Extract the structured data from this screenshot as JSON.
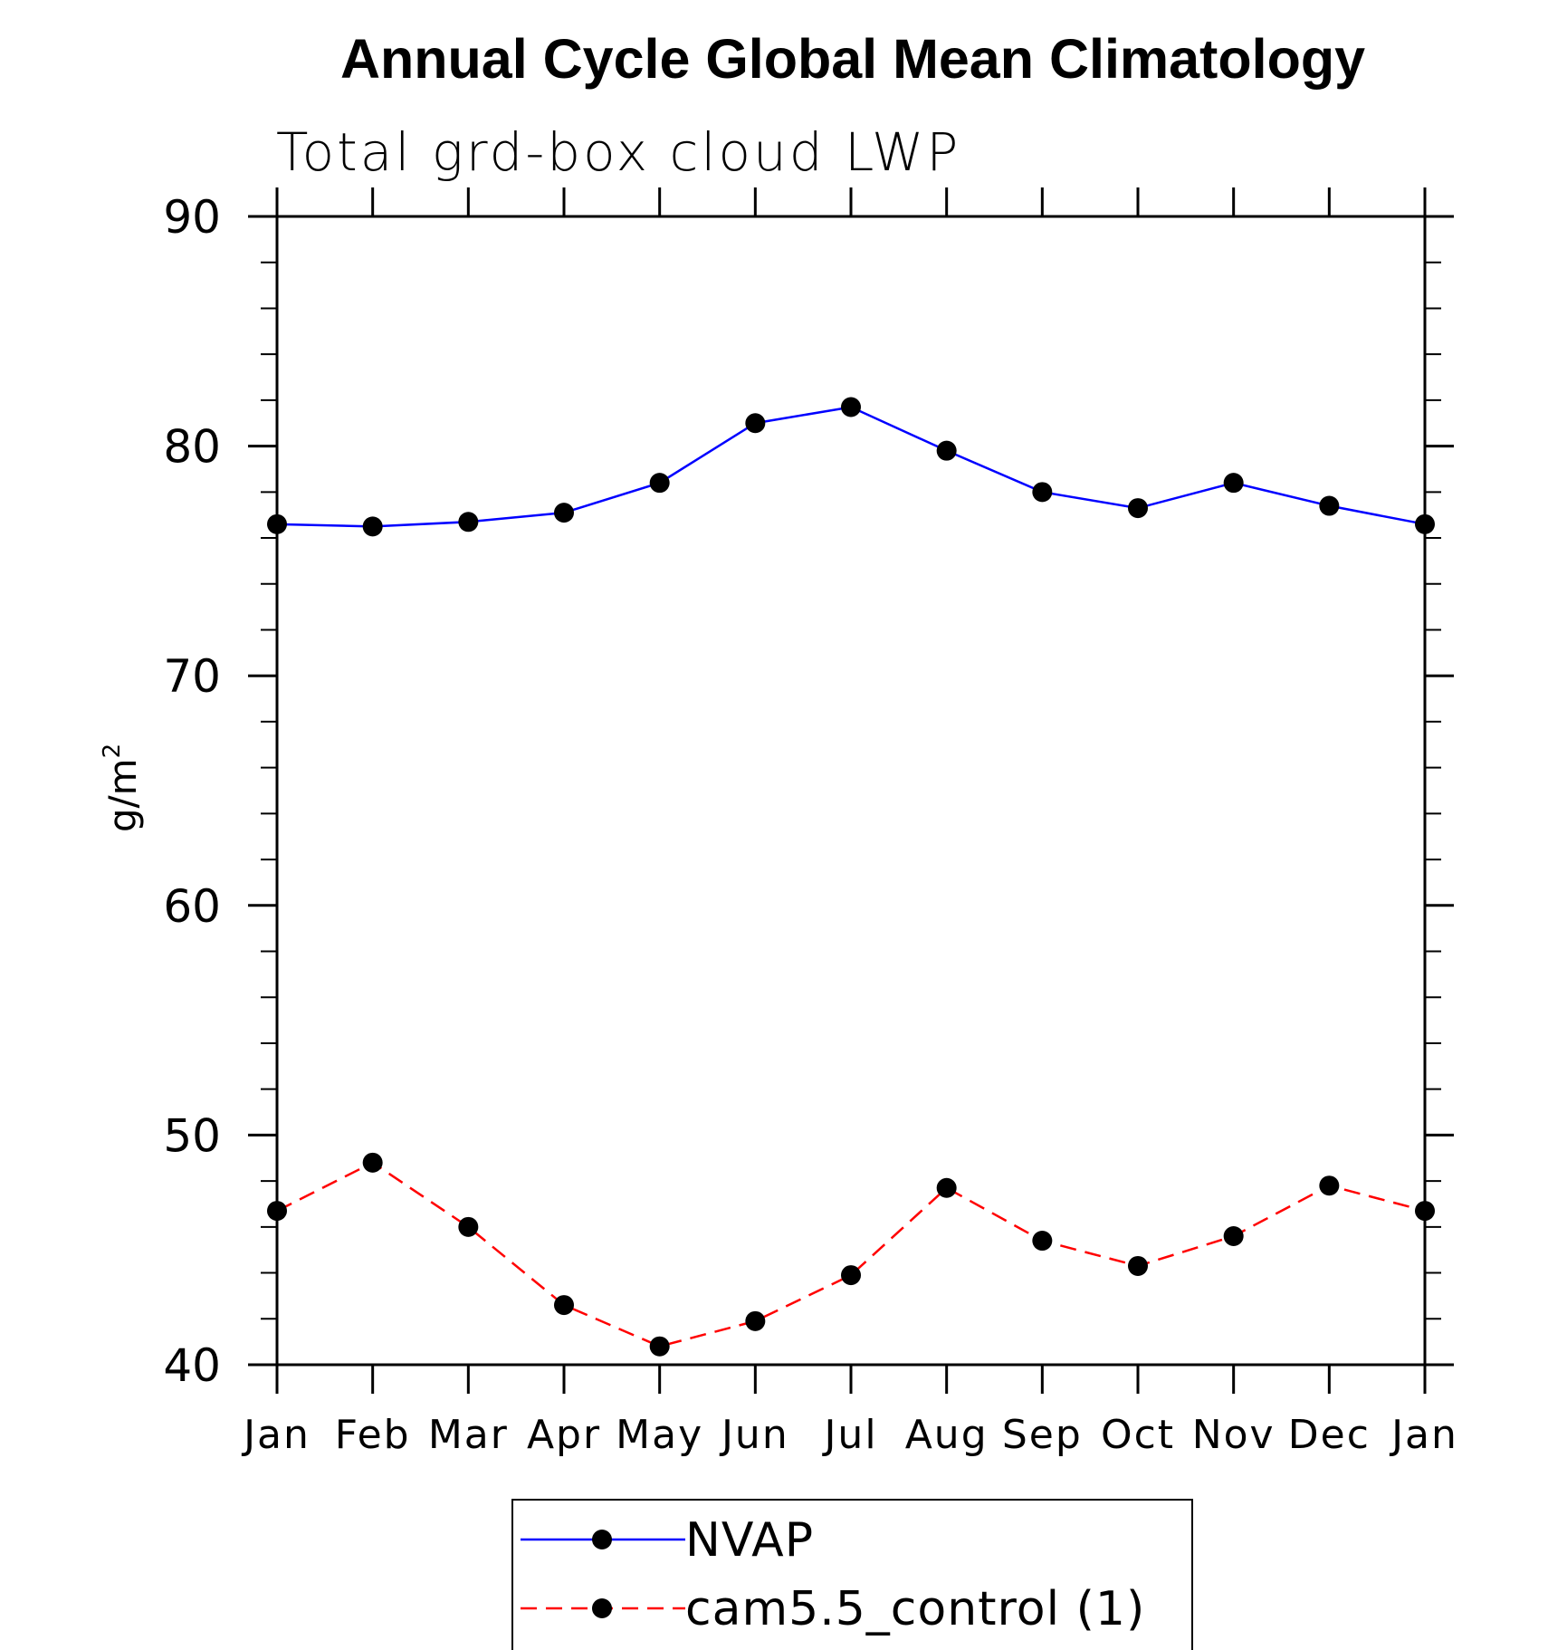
{
  "chart_data": {
    "type": "line",
    "title": "Annual Cycle Global Mean Climatology",
    "subtitle": "Total grd-box cloud LWP",
    "ylabel": "g/m",
    "ylabel_superscript": "2",
    "categories": [
      "Jan",
      "Feb",
      "Mar",
      "Apr",
      "May",
      "Jun",
      "Jul",
      "Aug",
      "Sep",
      "Oct",
      "Nov",
      "Dec",
      "Jan"
    ],
    "ylim": [
      40,
      90
    ],
    "yticks": [
      "40",
      "50",
      "60",
      "70",
      "80",
      "90"
    ],
    "grid": false,
    "legend_position": "bottom",
    "series": [
      {
        "name": "NVAP",
        "color": "#0000ff",
        "line_style": "solid",
        "marker": "filled-circle",
        "values": [
          76.6,
          76.5,
          76.7,
          77.1,
          78.4,
          81.0,
          81.7,
          79.8,
          78.0,
          77.3,
          78.4,
          77.4,
          76.6
        ]
      },
      {
        "name": "cam5.5_control (1)",
        "color": "#ff0000",
        "line_style": "dashed",
        "marker": "filled-circle",
        "values": [
          46.7,
          48.8,
          46.0,
          42.6,
          40.8,
          41.9,
          43.9,
          47.7,
          45.4,
          44.3,
          45.6,
          47.8,
          46.7
        ]
      }
    ]
  }
}
